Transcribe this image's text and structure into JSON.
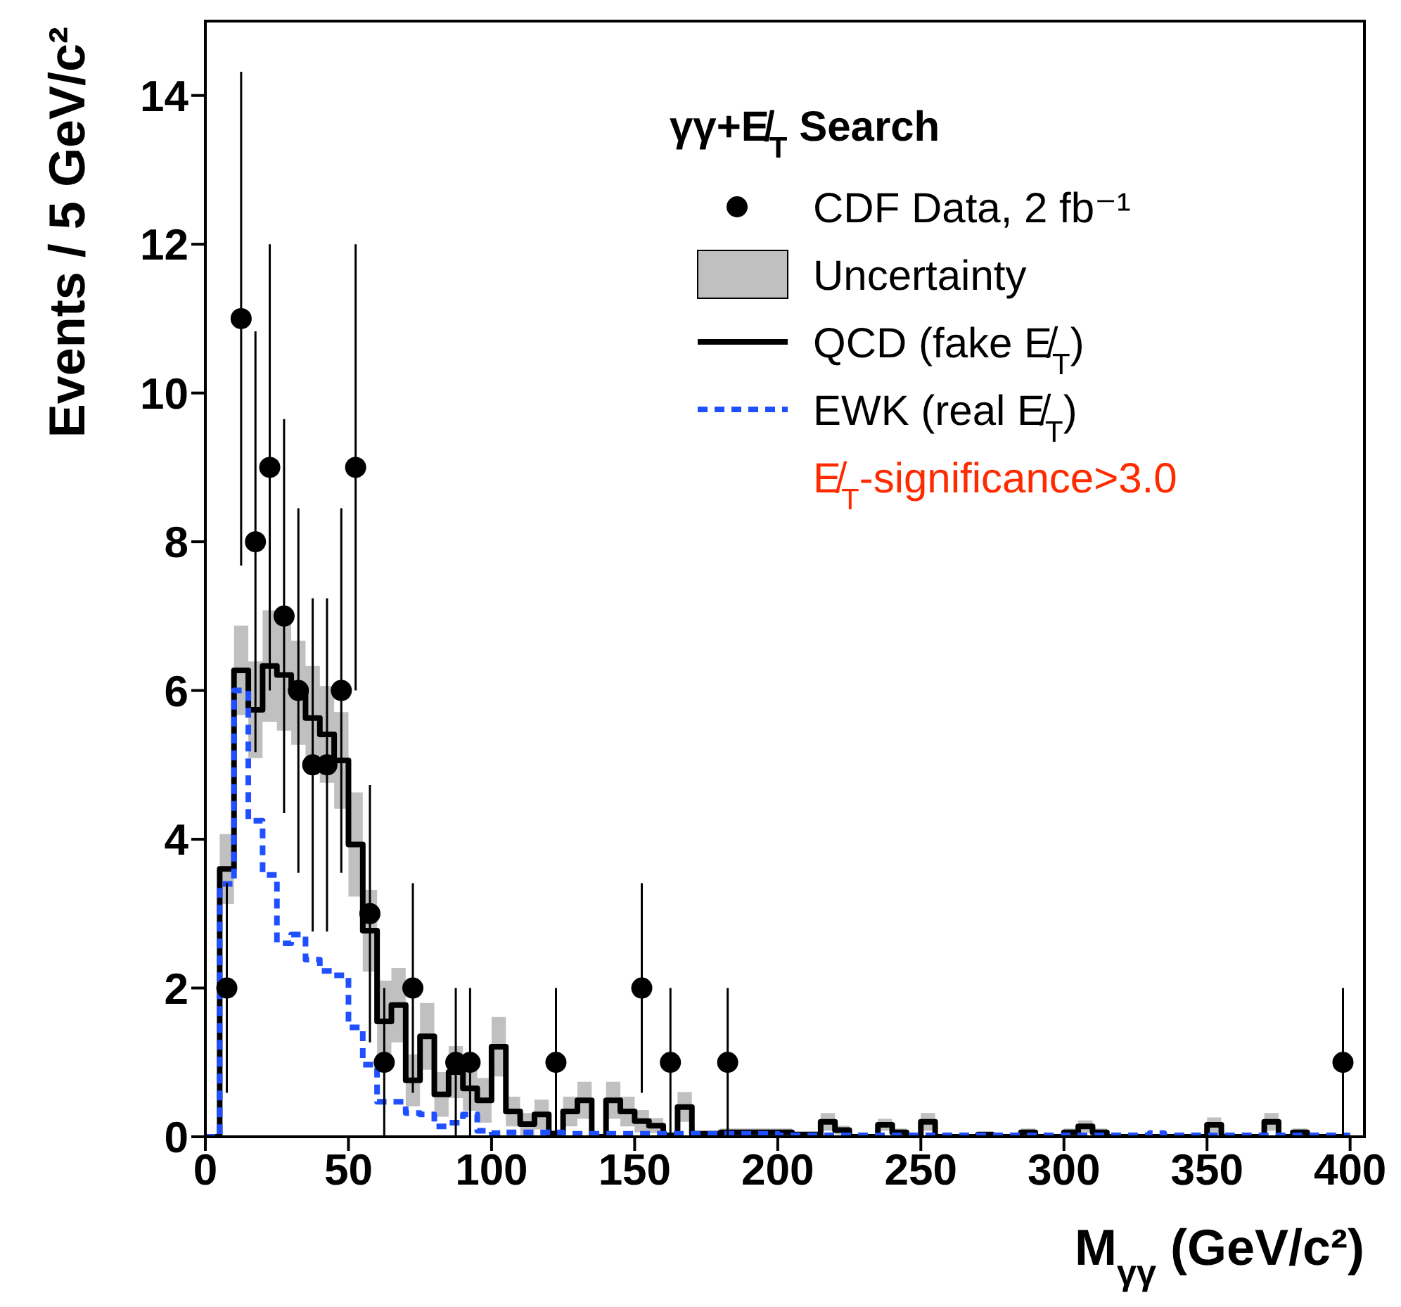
{
  "chart_data": {
    "type": "step",
    "xlabel": "M$_{γγ}$ (GeV/c²)",
    "ylabel": "Events / 5  GeV/c²",
    "legend_title": "γγ+E̸$_{T}$ Search",
    "legend": "top right",
    "xlim": [
      0,
      405
    ],
    "xticks": [
      0,
      50,
      100,
      150,
      200,
      250,
      300,
      350,
      400
    ],
    "ylim": [
      0,
      15
    ],
    "yticks": [
      0,
      2,
      4,
      6,
      8,
      10,
      12,
      14
    ],
    "annotations": [
      "Uncertainty",
      "E̸$_{T}$-significance>3.0"
    ],
    "series": [
      {
        "name": "CDF Data, 2 fb⁻¹",
        "type": "scatter",
        "marker": "circle",
        "color": "#000000",
        "x": [
          7.5,
          12.5,
          17.5,
          22.5,
          27.5,
          32.5,
          37.5,
          42.5,
          47.5,
          52.5,
          57.5,
          62.5,
          72.5,
          87.5,
          92.5,
          122.5,
          152.5,
          162.5,
          182.5,
          397.5
        ],
        "values": [
          2,
          11,
          8,
          9,
          7,
          6,
          5,
          5,
          6,
          9,
          3,
          1,
          2,
          1,
          1,
          1,
          2,
          1,
          1,
          1
        ],
        "errors": [
          1.41,
          3.32,
          2.83,
          3,
          2.65,
          2.45,
          2.24,
          2.24,
          2.45,
          3,
          1.73,
          1,
          1.41,
          1,
          1,
          1,
          1.41,
          1,
          1,
          1
        ]
      },
      {
        "name": "QCD (fake E̸$_{T}$)",
        "line_style": "solid",
        "color": "#000000",
        "x": [
          0,
          5,
          10,
          15,
          20,
          25,
          30,
          35,
          40,
          45,
          50,
          55,
          60,
          65,
          70,
          75,
          80,
          85,
          90,
          95,
          100,
          105,
          110,
          115,
          120,
          125,
          130,
          135,
          140,
          145,
          150,
          155,
          160,
          165,
          170,
          175,
          180,
          185,
          190,
          195,
          200,
          205,
          210,
          215,
          220,
          225,
          230,
          235,
          240,
          245,
          250,
          255,
          260,
          265,
          270,
          275,
          280,
          285,
          290,
          295,
          300,
          305,
          310,
          315,
          320,
          325,
          330,
          335,
          340,
          345,
          350,
          355,
          360,
          365,
          370,
          375,
          380,
          385,
          390,
          395,
          400
        ],
        "lower": [
          0,
          3.13,
          5.67,
          5.09,
          5.58,
          5.46,
          5.27,
          4.93,
          4.76,
          4.41,
          3.23,
          2.22,
          1.0,
          1.27,
          0.41,
          0.9,
          0.27,
          0.52,
          0.35,
          0.19,
          0.81,
          0.14,
          0.02,
          0.1,
          0,
          0.14,
          0.24,
          0,
          0.24,
          0.14,
          0.06,
          0.05,
          0,
          0.2,
          0,
          0,
          0.01,
          0.01,
          0.01,
          0.01,
          0.01,
          0,
          0,
          0.08,
          0.03,
          0,
          0,
          0.08,
          0.01,
          0,
          0.08,
          0,
          0,
          0,
          0,
          0,
          0,
          0.01,
          0,
          0,
          0.01,
          0.06,
          0.01,
          0,
          0,
          0,
          0,
          0,
          0,
          0,
          0.06,
          0,
          0,
          0,
          0.08,
          0,
          0.01,
          0,
          0,
          0,
          0
        ],
        "upper": [
          0,
          4.07,
          6.87,
          6.39,
          7.08,
          6.96,
          6.67,
          6.33,
          6.06,
          5.71,
          4.63,
          3.32,
          2.1,
          2.27,
          1.11,
          1.8,
          0.87,
          1.22,
          0.95,
          0.79,
          1.61,
          0.54,
          0.32,
          0.5,
          0.09,
          0.54,
          0.74,
          0,
          0.74,
          0.54,
          0.36,
          0.25,
          0.05,
          0.6,
          0.08,
          0.08,
          0.11,
          0.11,
          0.11,
          0.11,
          0.11,
          0.06,
          0.06,
          0.32,
          0.15,
          0,
          0,
          0.24,
          0.11,
          0,
          0.32,
          0,
          0,
          0,
          0.06,
          0,
          0,
          0.11,
          0,
          0,
          0.11,
          0.22,
          0.11,
          0,
          0,
          0,
          0,
          0,
          0,
          0,
          0.26,
          0,
          0,
          0,
          0.32,
          0,
          0.11,
          0,
          0,
          0,
          0
        ],
        "values": [
          0,
          3.6,
          6.27,
          5.74,
          6.33,
          6.21,
          5.97,
          5.63,
          5.41,
          5.06,
          3.93,
          2.77,
          1.55,
          1.77,
          0.76,
          1.35,
          0.57,
          0.87,
          0.65,
          0.49,
          1.21,
          0.34,
          0.17,
          0.3,
          0.04,
          0.34,
          0.49,
          0,
          0.49,
          0.34,
          0.21,
          0.15,
          0.02,
          0.4,
          0.04,
          0.04,
          0.06,
          0.06,
          0.06,
          0.06,
          0.06,
          0.03,
          0.03,
          0.2,
          0.09,
          0,
          0,
          0.16,
          0.06,
          0,
          0.2,
          0,
          0,
          0,
          0.03,
          0,
          0,
          0.06,
          0,
          0,
          0.06,
          0.14,
          0.06,
          0,
          0,
          0,
          0,
          0,
          0,
          0,
          0.16,
          0,
          0,
          0,
          0.2,
          0,
          0.06,
          0,
          0,
          0,
          0
        ]
      },
      {
        "name": "EWK (real E̸$_{T}$)",
        "line_style": "dashed",
        "color": "#1f4fff",
        "x": [
          0,
          5,
          10,
          15,
          20,
          25,
          30,
          35,
          40,
          45,
          50,
          55,
          60,
          65,
          70,
          75,
          80,
          85,
          90,
          95,
          100,
          105,
          110,
          115,
          120,
          125,
          130,
          135,
          140,
          145,
          150,
          155,
          160,
          165,
          170,
          175,
          180,
          185,
          190,
          195,
          200,
          205,
          210,
          215,
          220,
          225,
          230,
          235,
          240,
          245,
          250,
          255,
          260,
          265,
          270,
          275,
          280,
          285,
          290,
          295,
          300,
          305,
          310,
          315,
          320,
          325,
          330,
          335,
          340,
          345,
          350,
          355,
          360,
          365,
          370,
          375,
          380,
          385,
          390,
          395,
          400
        ],
        "values": [
          0,
          3.4,
          6.0,
          4.25,
          3.52,
          2.6,
          2.72,
          2.38,
          2.23,
          2.17,
          1.47,
          0.97,
          0.47,
          0.47,
          0.32,
          0.3,
          0.14,
          0.19,
          0.3,
          0.08,
          0.05,
          0.06,
          0.06,
          0.06,
          0.06,
          0.04,
          0.04,
          0.04,
          0.04,
          0.04,
          0.04,
          0.04,
          0.04,
          0.04,
          0.04,
          0.04,
          0.04,
          0.04,
          0.04,
          0.04,
          0.02,
          0.02,
          0.02,
          0.02,
          0.02,
          0.02,
          0.02,
          0.02,
          0.02,
          0.02,
          0.02,
          0.02,
          0.02,
          0.02,
          0.02,
          0.02,
          0.02,
          0.02,
          0.02,
          0.02,
          0.02,
          0.02,
          0.02,
          0.02,
          0.02,
          0.02,
          0.05,
          0.02,
          0.02,
          0.02,
          0.02,
          0.02,
          0.02,
          0.02,
          0.02,
          0.02,
          0.02,
          0.02,
          0.02,
          0.02,
          0.02
        ]
      }
    ]
  }
}
